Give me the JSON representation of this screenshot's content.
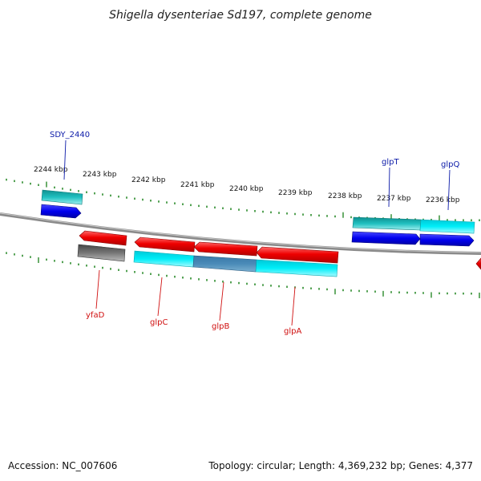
{
  "title": "Shigella dysenteriae Sd197, complete genome",
  "footer": {
    "accession": "Accession: NC_007606",
    "summary": "Topology: circular; Length: 4,369,232 bp; Genes: 4,377"
  },
  "scale_labels": [
    "2244 kbp",
    "2243 kbp",
    "2242 kbp",
    "2241 kbp",
    "2240 kbp",
    "2239 kbp",
    "2238 kbp",
    "2237 kbp",
    "2236 kbp"
  ],
  "gene_labels": {
    "top": [
      "SDY_2440",
      "glpT",
      "glpQ"
    ],
    "bottom": [
      "yfaD",
      "glpC",
      "glpB",
      "glpA"
    ]
  },
  "colors": {
    "cds": "#0000ee",
    "gene_forward": "#18b8b8",
    "gene_reverse": "#ee0000",
    "gene_reverse_lower": "#00e5f0",
    "rna_grey": "#666666",
    "tick": "#2a8a2a",
    "backbone": "#888888"
  }
}
